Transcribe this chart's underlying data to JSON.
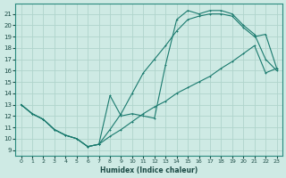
{
  "xlabel": "Humidex (Indice chaleur)",
  "bg_color": "#ceeae4",
  "grid_color": "#b0d4cc",
  "line_color": "#1a7a6e",
  "x_ticks": [
    0,
    1,
    2,
    3,
    4,
    5,
    6,
    7,
    8,
    9,
    10,
    11,
    12,
    13,
    14,
    15,
    16,
    17,
    18,
    19,
    20,
    21,
    22,
    23
  ],
  "y_ticks": [
    9,
    10,
    11,
    12,
    13,
    14,
    15,
    16,
    17,
    18,
    19,
    20,
    21
  ],
  "xlim": [
    -0.5,
    23.5
  ],
  "ylim": [
    8.5,
    21.9
  ],
  "line1_x": [
    0,
    1,
    2,
    3,
    4,
    5,
    6,
    7,
    8,
    9,
    10,
    11,
    12,
    13,
    14,
    15,
    16,
    17,
    18,
    19,
    20,
    21,
    22,
    23
  ],
  "line1_y": [
    13.0,
    12.2,
    11.7,
    10.8,
    10.3,
    10.0,
    9.3,
    9.5,
    13.8,
    12.0,
    12.2,
    12.0,
    11.8,
    16.5,
    20.5,
    21.3,
    21.0,
    21.3,
    21.3,
    21.0,
    20.0,
    19.2,
    17.0,
    16.0
  ],
  "line2_x": [
    0,
    1,
    2,
    3,
    4,
    5,
    6,
    7,
    8,
    9,
    10,
    11,
    12,
    13,
    14,
    15,
    16,
    17,
    18,
    19,
    20,
    21,
    22,
    23
  ],
  "line2_y": [
    13.0,
    12.2,
    11.7,
    10.8,
    10.3,
    10.0,
    9.3,
    9.5,
    10.8,
    12.2,
    14.0,
    15.8,
    17.0,
    18.2,
    19.5,
    20.5,
    20.8,
    21.0,
    21.0,
    20.8,
    19.8,
    19.0,
    19.2,
    16.2
  ],
  "line3_x": [
    0,
    1,
    2,
    3,
    4,
    5,
    6,
    7,
    8,
    9,
    10,
    11,
    12,
    13,
    14,
    15,
    16,
    17,
    18,
    19,
    20,
    21,
    22,
    23
  ],
  "line3_y": [
    13.0,
    12.2,
    11.7,
    10.8,
    10.3,
    10.0,
    9.3,
    9.5,
    10.2,
    10.8,
    11.5,
    12.2,
    12.8,
    13.3,
    14.0,
    14.5,
    15.0,
    15.5,
    16.2,
    16.8,
    17.5,
    18.2,
    15.8,
    16.2
  ]
}
